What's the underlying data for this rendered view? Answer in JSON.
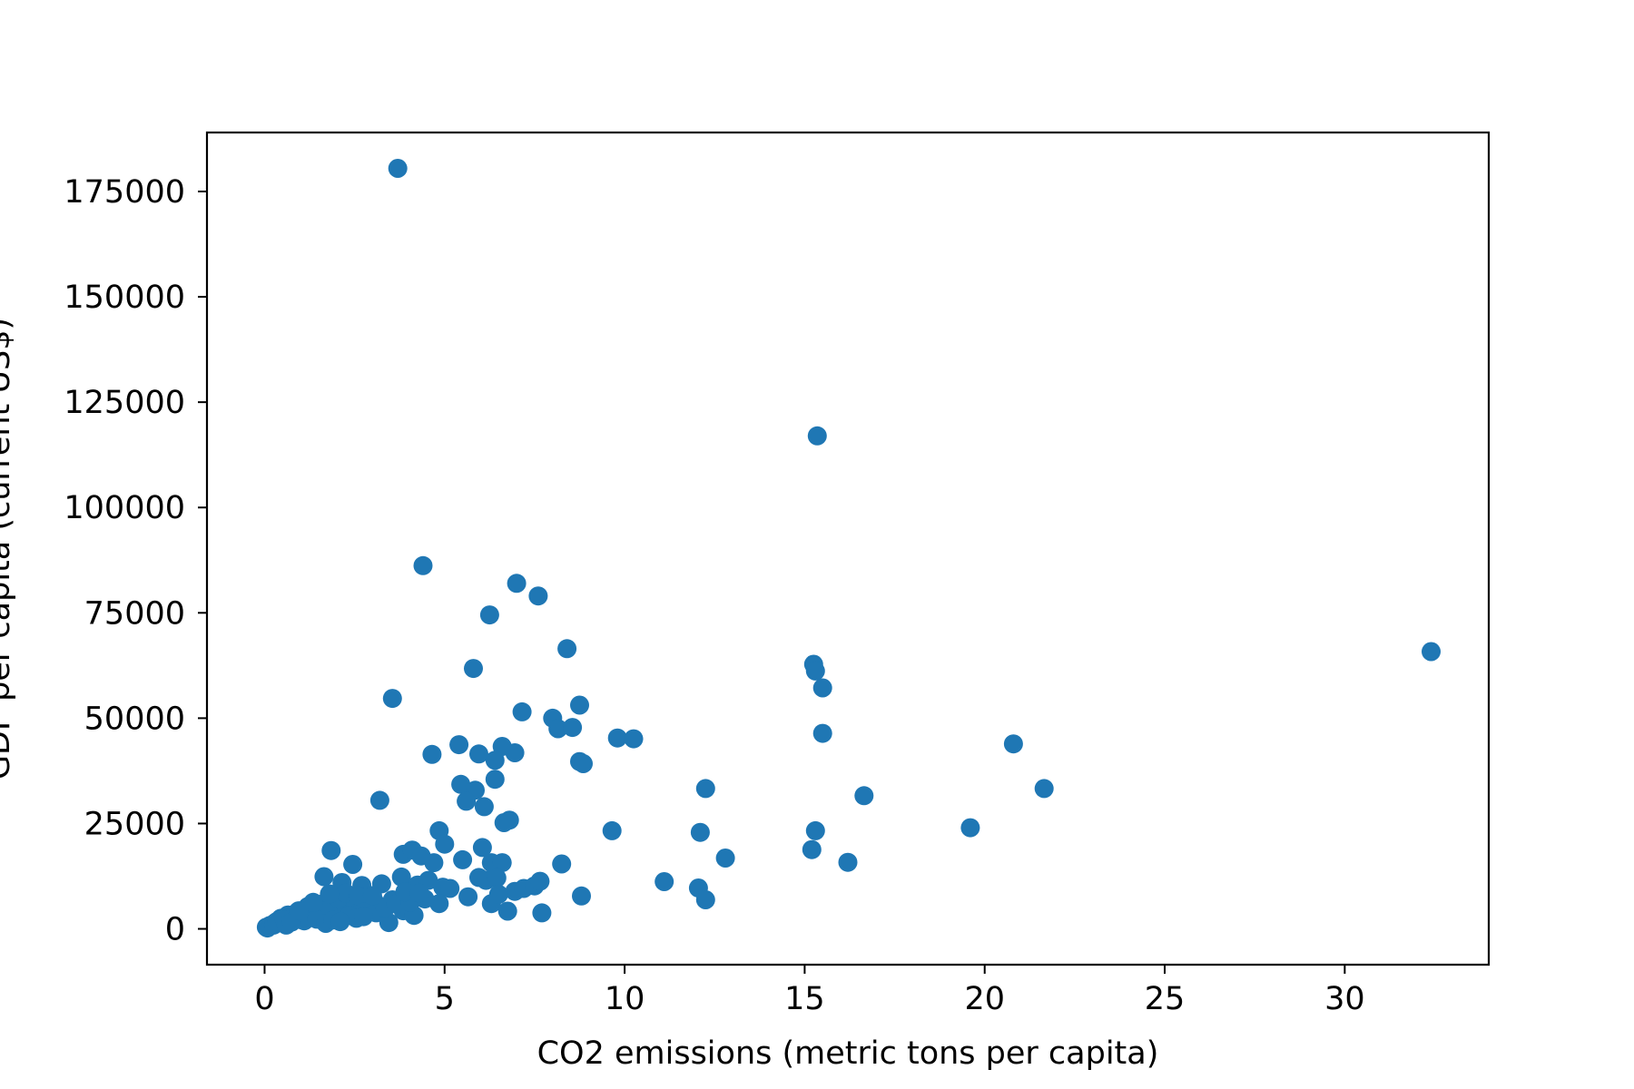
{
  "chart_data": {
    "type": "scatter",
    "title": "",
    "xlabel": "CO2 emissions (metric tons per capita)",
    "ylabel": "GDP per capita (current US$)",
    "xlim": [
      -1.6,
      34
    ],
    "ylim": [
      -8500,
      189000
    ],
    "xticks": [
      0,
      5,
      10,
      15,
      20,
      25,
      30
    ],
    "yticks": [
      0,
      25000,
      50000,
      75000,
      100000,
      125000,
      150000,
      175000
    ],
    "grid": false,
    "marker_color": "#1f77b4",
    "points": [
      [
        3.7,
        180500
      ],
      [
        15.35,
        117000
      ],
      [
        32.4,
        65800
      ],
      [
        4.4,
        86200
      ],
      [
        7.0,
        82000
      ],
      [
        7.6,
        79000
      ],
      [
        6.25,
        74500
      ],
      [
        8.4,
        66500
      ],
      [
        15.25,
        62800
      ],
      [
        15.3,
        61200
      ],
      [
        5.8,
        61800
      ],
      [
        15.5,
        57200
      ],
      [
        3.55,
        54700
      ],
      [
        7.15,
        51500
      ],
      [
        8.75,
        53100
      ],
      [
        8.0,
        50000
      ],
      [
        8.15,
        47500
      ],
      [
        8.55,
        47800
      ],
      [
        15.5,
        46400
      ],
      [
        9.8,
        45300
      ],
      [
        10.25,
        45100
      ],
      [
        20.8,
        43900
      ],
      [
        5.4,
        43700
      ],
      [
        6.6,
        43300
      ],
      [
        4.65,
        41400
      ],
      [
        5.95,
        41500
      ],
      [
        6.4,
        40000
      ],
      [
        6.95,
        41800
      ],
      [
        8.75,
        39700
      ],
      [
        8.85,
        39200
      ],
      [
        6.4,
        35500
      ],
      [
        5.45,
        34300
      ],
      [
        5.85,
        32900
      ],
      [
        21.65,
        33300
      ],
      [
        12.25,
        33300
      ],
      [
        16.65,
        31600
      ],
      [
        5.6,
        30300
      ],
      [
        6.1,
        29000
      ],
      [
        3.2,
        30500
      ],
      [
        6.65,
        25200
      ],
      [
        6.8,
        25800
      ],
      [
        19.6,
        24000
      ],
      [
        9.65,
        23300
      ],
      [
        12.1,
        22900
      ],
      [
        15.3,
        23300
      ],
      [
        4.85,
        23300
      ],
      [
        5.0,
        20100
      ],
      [
        6.05,
        19300
      ],
      [
        1.85,
        18600
      ],
      [
        3.85,
        17700
      ],
      [
        4.1,
        18700
      ],
      [
        4.35,
        17300
      ],
      [
        4.7,
        15700
      ],
      [
        5.5,
        16400
      ],
      [
        6.3,
        15700
      ],
      [
        6.6,
        15700
      ],
      [
        8.25,
        15400
      ],
      [
        12.8,
        16800
      ],
      [
        15.2,
        18800
      ],
      [
        16.2,
        15800
      ],
      [
        2.45,
        15300
      ],
      [
        1.65,
        12400
      ],
      [
        2.15,
        11000
      ],
      [
        2.7,
        10300
      ],
      [
        3.25,
        10700
      ],
      [
        3.8,
        12300
      ],
      [
        4.25,
        10400
      ],
      [
        4.55,
        11500
      ],
      [
        4.95,
        9900
      ],
      [
        5.15,
        9600
      ],
      [
        5.95,
        12200
      ],
      [
        6.15,
        11500
      ],
      [
        6.45,
        12100
      ],
      [
        6.95,
        8900
      ],
      [
        7.2,
        9600
      ],
      [
        7.5,
        10200
      ],
      [
        7.65,
        11300
      ],
      [
        11.1,
        11200
      ],
      [
        12.05,
        9700
      ],
      [
        12.25,
        6900
      ],
      [
        8.8,
        7800
      ],
      [
        5.65,
        7600
      ],
      [
        6.3,
        6000
      ],
      [
        6.5,
        8200
      ],
      [
        6.75,
        4200
      ],
      [
        7.7,
        3800
      ],
      [
        4.85,
        6000
      ],
      [
        4.45,
        7100
      ],
      [
        3.55,
        6900
      ],
      [
        3.05,
        6500
      ],
      [
        2.9,
        5600
      ],
      [
        2.45,
        6200
      ],
      [
        2.0,
        5300
      ],
      [
        1.6,
        5900
      ],
      [
        1.2,
        5300
      ],
      [
        0.9,
        3900
      ],
      [
        0.65,
        3300
      ],
      [
        0.45,
        2500
      ],
      [
        0.3,
        1500
      ],
      [
        0.15,
        800
      ],
      [
        0.05,
        400
      ],
      [
        0.08,
        200
      ],
      [
        0.25,
        900
      ],
      [
        0.35,
        1800
      ],
      [
        0.55,
        2100
      ],
      [
        0.8,
        2600
      ],
      [
        1.0,
        2200
      ],
      [
        1.3,
        3000
      ],
      [
        1.5,
        3600
      ],
      [
        1.75,
        4500
      ],
      [
        2.05,
        7200
      ],
      [
        2.25,
        8500
      ],
      [
        2.6,
        7800
      ],
      [
        2.8,
        4100
      ],
      [
        3.1,
        3800
      ],
      [
        3.45,
        1500
      ],
      [
        3.85,
        4300
      ],
      [
        4.15,
        3200
      ],
      [
        1.1,
        1900
      ],
      [
        1.45,
        2300
      ],
      [
        1.7,
        1300
      ],
      [
        2.35,
        3200
      ],
      [
        2.55,
        2500
      ],
      [
        2.75,
        2900
      ],
      [
        3.35,
        4900
      ],
      [
        3.65,
        5900
      ],
      [
        4.05,
        6300
      ],
      [
        0.6,
        900
      ],
      [
        0.75,
        1600
      ],
      [
        1.9,
        2100
      ],
      [
        2.1,
        1700
      ],
      [
        3.0,
        7900
      ],
      [
        3.9,
        8800
      ],
      [
        4.3,
        8500
      ],
      [
        1.35,
        6300
      ],
      [
        0.95,
        4300
      ],
      [
        1.8,
        8300
      ]
    ]
  }
}
